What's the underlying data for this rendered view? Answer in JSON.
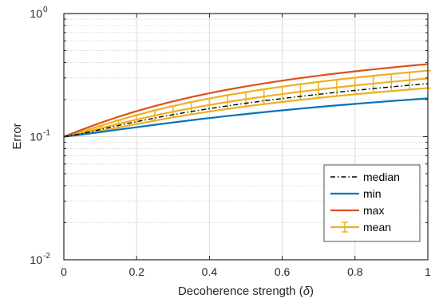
{
  "chart_data": {
    "type": "line",
    "xlabel": "Decoherence strength (",
    "xlabel_symbol": "δ",
    "xlabel_end": ")",
    "ylabel": "Error",
    "xlim": [
      0,
      1
    ],
    "ylim": [
      0.01,
      1
    ],
    "yscale": "log",
    "x_ticks": [
      "0",
      "0.2",
      "0.4",
      "0.6",
      "0.8",
      "1"
    ],
    "y_ticks": [
      {
        "base": "10",
        "exp": "-2"
      },
      {
        "base": "10",
        "exp": "-1"
      },
      {
        "base": "10",
        "exp": "0"
      }
    ],
    "grid": true,
    "legend_position": "bottom-right",
    "x": [
      0,
      0.05,
      0.1,
      0.15,
      0.2,
      0.25,
      0.3,
      0.35,
      0.4,
      0.45,
      0.5,
      0.55,
      0.6,
      0.65,
      0.7,
      0.75,
      0.8,
      0.85,
      0.9,
      0.95,
      1.0
    ],
    "series": [
      {
        "name": "median",
        "color": "#000000",
        "dash": "dashdot",
        "values": [
          0.1,
          0.1061,
          0.1142,
          0.1232,
          0.1324,
          0.1417,
          0.1509,
          0.16,
          0.169,
          0.1779,
          0.1867,
          0.1954,
          0.204,
          0.2125,
          0.2209,
          0.2293,
          0.2375,
          0.2457,
          0.2538,
          0.2618,
          0.2697
        ]
      },
      {
        "name": "min",
        "color": "#0072BD",
        "dash": "solid",
        "values": [
          0.1,
          0.1042,
          0.1089,
          0.114,
          0.1193,
          0.1248,
          0.1304,
          0.136,
          0.1416,
          0.1472,
          0.1527,
          0.1582,
          0.1636,
          0.169,
          0.1743,
          0.1795,
          0.1846,
          0.1897,
          0.1947,
          0.1996,
          0.2045
        ]
      },
      {
        "name": "max",
        "color": "#D95319",
        "dash": "solid",
        "values": [
          0.1,
          0.114,
          0.1293,
          0.1451,
          0.1612,
          0.1774,
          0.1936,
          0.2096,
          0.2254,
          0.2409,
          0.256,
          0.2708,
          0.2852,
          0.2993,
          0.313,
          0.3264,
          0.3394,
          0.3521,
          0.3645,
          0.3766,
          0.3884
        ]
      },
      {
        "name": "mean",
        "color": "#EDB120",
        "dash": "solid",
        "errorbars": true,
        "values": [
          0.1,
          0.1074,
          0.1167,
          0.127,
          0.1377,
          0.1486,
          0.1594,
          0.1702,
          0.1808,
          0.1913,
          0.2016,
          0.2118,
          0.2218,
          0.2317,
          0.2414,
          0.251,
          0.2604,
          0.2697,
          0.2789,
          0.2879,
          0.2968
        ],
        "err_low": [
          0.1,
          0.1045,
          0.111,
          0.1185,
          0.1266,
          0.135,
          0.1434,
          0.1518,
          0.16,
          0.1681,
          0.1761,
          0.1839,
          0.1916,
          0.1991,
          0.2065,
          0.2137,
          0.2208,
          0.2278,
          0.2346,
          0.2413,
          0.2479
        ],
        "err_high": [
          0.1,
          0.11,
          0.1224,
          0.136,
          0.1497,
          0.1636,
          0.1774,
          0.191,
          0.2043,
          0.2174,
          0.2302,
          0.2427,
          0.2549,
          0.2669,
          0.2786,
          0.29,
          0.3012,
          0.3121,
          0.3228,
          0.3332,
          0.3435
        ]
      }
    ]
  }
}
